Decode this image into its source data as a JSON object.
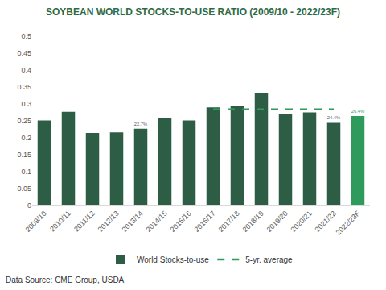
{
  "chart_data": {
    "type": "bar",
    "title": "SOYBEAN WORLD STOCKS-TO-USE RATIO (2009/10 - 2022/23F)",
    "categories": [
      "2009/10",
      "2010/11",
      "2011/12",
      "2012/13",
      "2013/14",
      "2014/15",
      "2015/16",
      "2016/17",
      "2017/18",
      "2018/19",
      "2019/20",
      "2020/21",
      "2021/22",
      "2022/23F"
    ],
    "series": [
      {
        "name": "World Stocks-to-use",
        "type": "bar",
        "color": "#2d5e45",
        "colors": [
          "#2d5e45",
          "#2d5e45",
          "#2d5e45",
          "#2d5e45",
          "#2d5e45",
          "#2d5e45",
          "#2d5e45",
          "#2d5e45",
          "#2d5e45",
          "#2d5e45",
          "#2d5e45",
          "#2d5e45",
          "#2d5e45",
          "#2e9a5c"
        ],
        "values": [
          0.251,
          0.277,
          0.214,
          0.216,
          0.227,
          0.257,
          0.251,
          0.29,
          0.293,
          0.332,
          0.27,
          0.275,
          0.244,
          0.264
        ],
        "value_labels": [
          null,
          null,
          null,
          null,
          "22.7%",
          null,
          null,
          null,
          null,
          null,
          null,
          null,
          "24.4%",
          "26.4%"
        ]
      },
      {
        "name": "5-yr. average",
        "type": "line",
        "line_style": "dashed",
        "color": "#2e9a5c",
        "values": [
          null,
          null,
          null,
          null,
          null,
          null,
          null,
          0.284,
          0.284,
          0.284,
          0.284,
          0.284,
          0.284,
          null
        ]
      }
    ],
    "ylim": [
      0,
      0.5
    ],
    "yticks": [
      0,
      0.05,
      0.1,
      0.15,
      0.2,
      0.25,
      0.3,
      0.35,
      0.4,
      0.45,
      0.5
    ],
    "grid": false,
    "legend": "bottom",
    "data_labels": true,
    "annotations": [
      "Data Source: CME Group, USDA"
    ]
  }
}
